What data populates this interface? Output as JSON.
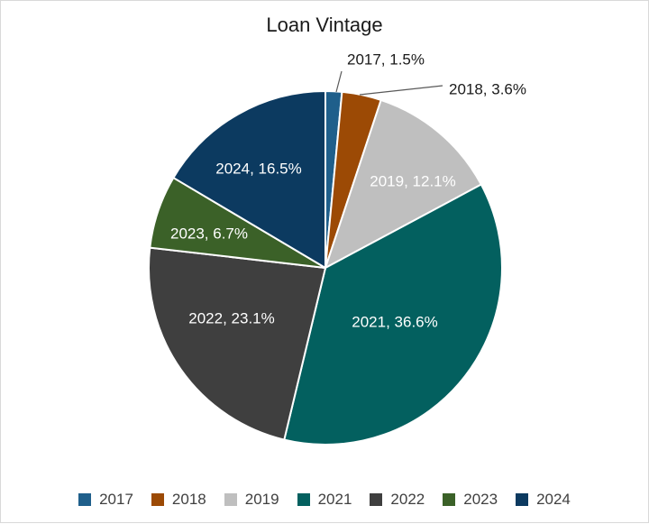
{
  "chart_data": {
    "type": "pie",
    "title": "Loan Vintage",
    "categories": [
      "2017",
      "2018",
      "2019",
      "2021",
      "2022",
      "2023",
      "2024"
    ],
    "values": [
      1.5,
      3.6,
      12.1,
      36.6,
      23.1,
      6.7,
      16.5
    ],
    "unit": "%",
    "data_labels": [
      "2017, 1.5%",
      "2018, 3.6%",
      "2019, 12.1%",
      "2021, 36.6%",
      "2022, 23.1%",
      "2023, 6.7%",
      "2024, 16.5%"
    ],
    "colors": [
      "#1f5f8b",
      "#9c4a05",
      "#bfbfbf",
      "#03605f",
      "#3f3f3f",
      "#3b6128",
      "#0c3a60"
    ],
    "label_colors": [
      "#1a1a1a",
      "#1a1a1a",
      "#ffffff",
      "#ffffff",
      "#ffffff",
      "#ffffff",
      "#ffffff"
    ],
    "outside_labels": [
      true,
      true,
      false,
      false,
      false,
      false,
      false
    ],
    "legend": "bottom",
    "start_angle_deg": 0,
    "direction": "clockwise"
  }
}
